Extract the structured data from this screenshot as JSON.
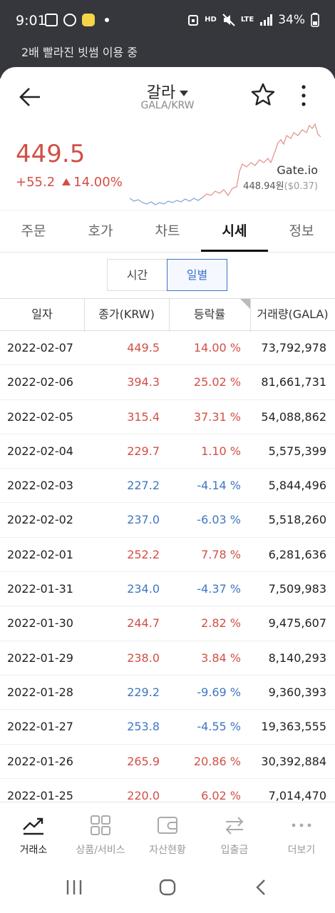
{
  "status_bar": {
    "time": "9:01",
    "hd": "HD",
    "lte": "LTE",
    "battery": "34%"
  },
  "notice": "2배 빨라진 빗썸 이용 중",
  "header": {
    "coin_name": "갈라",
    "pair": "GALA/KRW"
  },
  "price": {
    "current": "449.5",
    "change": "+55.2",
    "change_rate": "14.00%",
    "exchange": "Gate.io",
    "exchange_price": "448.94원",
    "exchange_usd": "($0.37)"
  },
  "tabs": [
    {
      "label": "주문",
      "active": false
    },
    {
      "label": "호가",
      "active": false
    },
    {
      "label": "차트",
      "active": false
    },
    {
      "label": "시세",
      "active": true
    },
    {
      "label": "정보",
      "active": false
    }
  ],
  "segment": {
    "time_label": "시간",
    "daily_label": "일별",
    "active": "일별"
  },
  "table": {
    "headers": {
      "date": "일자",
      "close": "종가(KRW)",
      "rate": "등락률",
      "volume": "거래량(GALA)"
    },
    "rows": [
      {
        "date": "2022-02-07",
        "close": "449.5",
        "rate": "14.00 %",
        "volume": "73,792,978",
        "dir": "up"
      },
      {
        "date": "2022-02-06",
        "close": "394.3",
        "rate": "25.02 %",
        "volume": "81,661,731",
        "dir": "up"
      },
      {
        "date": "2022-02-05",
        "close": "315.4",
        "rate": "37.31 %",
        "volume": "54,088,862",
        "dir": "up"
      },
      {
        "date": "2022-02-04",
        "close": "229.7",
        "rate": "1.10 %",
        "volume": "5,575,399",
        "dir": "up"
      },
      {
        "date": "2022-02-03",
        "close": "227.2",
        "rate": "-4.14 %",
        "volume": "5,844,496",
        "dir": "down"
      },
      {
        "date": "2022-02-02",
        "close": "237.0",
        "rate": "-6.03 %",
        "volume": "5,518,260",
        "dir": "down"
      },
      {
        "date": "2022-02-01",
        "close": "252.2",
        "rate": "7.78 %",
        "volume": "6,281,636",
        "dir": "up"
      },
      {
        "date": "2022-01-31",
        "close": "234.0",
        "rate": "-4.37 %",
        "volume": "7,509,983",
        "dir": "down"
      },
      {
        "date": "2022-01-30",
        "close": "244.7",
        "rate": "2.82 %",
        "volume": "9,475,607",
        "dir": "up"
      },
      {
        "date": "2022-01-29",
        "close": "238.0",
        "rate": "3.84 %",
        "volume": "8,140,293",
        "dir": "up"
      },
      {
        "date": "2022-01-28",
        "close": "229.2",
        "rate": "-9.69 %",
        "volume": "9,360,393",
        "dir": "down"
      },
      {
        "date": "2022-01-27",
        "close": "253.8",
        "rate": "-4.55 %",
        "volume": "19,363,555",
        "dir": "down"
      },
      {
        "date": "2022-01-26",
        "close": "265.9",
        "rate": "20.86 %",
        "volume": "30,392,884",
        "dir": "up"
      },
      {
        "date": "2022-01-25",
        "close": "220.0",
        "rate": "6.02 %",
        "volume": "7,014,470",
        "dir": "up"
      }
    ]
  },
  "bottom_nav": [
    {
      "label": "거래소",
      "icon": "exchange-chart-icon",
      "active": true
    },
    {
      "label": "상품/서비스",
      "icon": "grid-icon",
      "active": false
    },
    {
      "label": "자산현황",
      "icon": "wallet-icon",
      "active": false
    },
    {
      "label": "입출금",
      "icon": "transfer-arrows-icon",
      "active": false
    },
    {
      "label": "더보기",
      "icon": "more-dots-icon",
      "active": false
    }
  ],
  "colors": {
    "up": "#d24f45",
    "down": "#3f76c0",
    "accent": "#3b74c8"
  }
}
